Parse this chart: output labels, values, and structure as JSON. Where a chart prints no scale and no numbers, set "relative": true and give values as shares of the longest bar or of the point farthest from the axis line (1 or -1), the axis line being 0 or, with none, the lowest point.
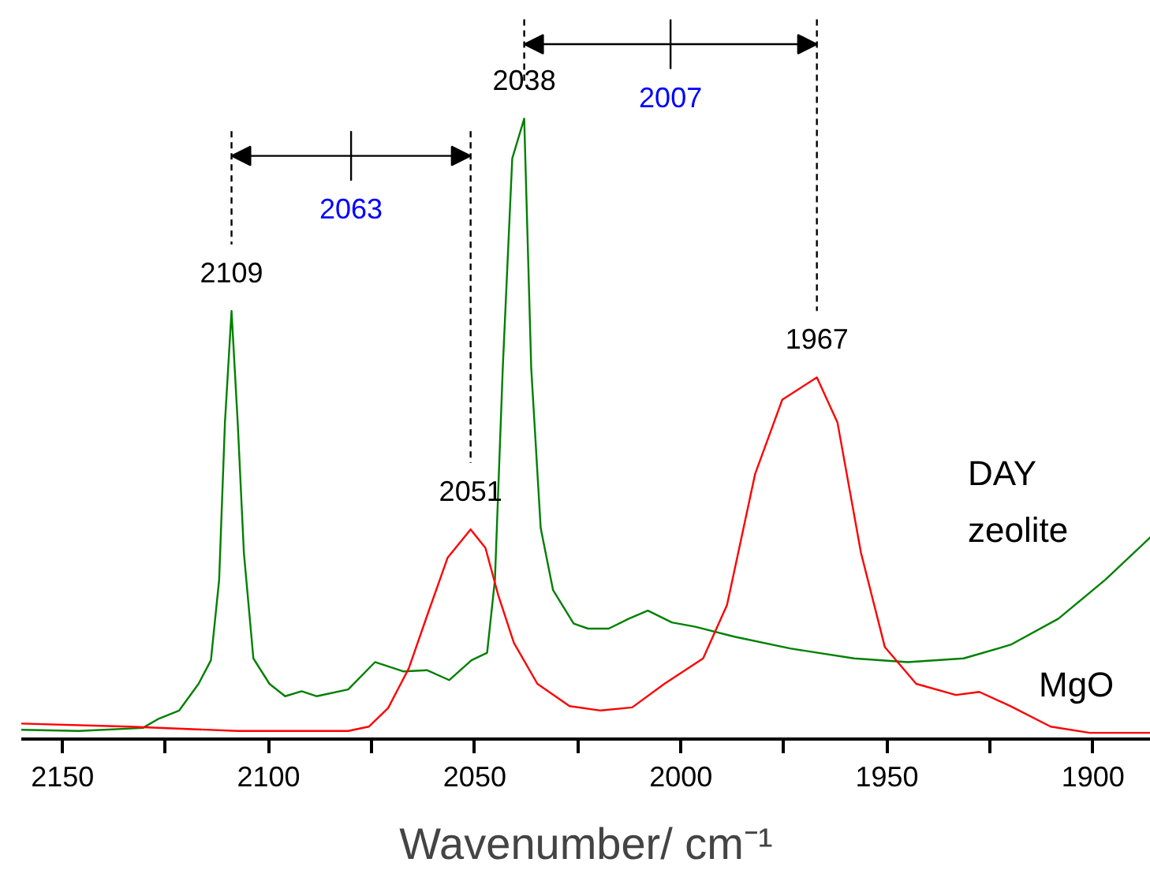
{
  "chart_data": {
    "type": "line",
    "relative": true,
    "xlabel": "Wavenumber/ cm⁻¹",
    "xlim": [
      2160,
      1886
    ],
    "xticks": [
      2150,
      {
        "value": 2125,
        "label": null
      },
      2100,
      {
        "value": 2075,
        "label": null
      },
      2050,
      {
        "value": 2025,
        "label": null
      },
      2000,
      {
        "value": 1975,
        "label": null
      },
      1950,
      {
        "value": 1925,
        "label": null
      },
      1900
    ],
    "series": [
      {
        "name": "DAY zeolite",
        "color": "#008000",
        "x": [
          2160,
          2146,
          2130.5,
          2126.6,
          2121.7,
          2117,
          2114,
          2112,
          2110.6,
          2109,
          2107.5,
          2106,
          2103.7,
          2099.8,
          2096,
          2092,
          2088.4,
          2080.7,
          2074.2,
          2067.3,
          2061.6,
          2056.2,
          2050.8,
          2047,
          2045.1,
          2043.2,
          2040.9,
          2038,
          2036.3,
          2034,
          2031,
          2026,
          2022.5,
          2017.5,
          2012.6,
          2008,
          2002.2,
          1996.5,
          1987,
          1973.5,
          1958,
          1945,
          1931.4,
          1920,
          1908.4,
          1897,
          1886
        ],
        "values": [
          0.015,
          0.013,
          0.018,
          0.033,
          0.046,
          0.089,
          0.127,
          0.257,
          0.51,
          0.69,
          0.51,
          0.3,
          0.13,
          0.089,
          0.069,
          0.077,
          0.069,
          0.08,
          0.124,
          0.109,
          0.111,
          0.095,
          0.127,
          0.139,
          0.257,
          0.598,
          0.936,
          1.0,
          0.598,
          0.34,
          0.24,
          0.186,
          0.178,
          0.178,
          0.194,
          0.207,
          0.188,
          0.181,
          0.165,
          0.146,
          0.13,
          0.124,
          0.13,
          0.152,
          0.194,
          0.257,
          0.326
        ]
      },
      {
        "name": "MgO",
        "color": "#ff0000",
        "x": [
          2160,
          2134,
          2107.5,
          2080.7,
          2075.7,
          2071,
          2066,
          2061.6,
          2056.6,
          2051,
          2047.4,
          2044.3,
          2040.5,
          2034.8,
          2027,
          2019.5,
          2011.8,
          2004,
          1994.6,
          1988.8,
          1982,
          1975.4,
          1967,
          1962,
          1956.3,
          1950.5,
          1942.9,
          1933.3,
          1927.6,
          1920,
          1910.3,
          1900.8,
          1886
        ],
        "values": [
          0.025,
          0.02,
          0.013,
          0.013,
          0.02,
          0.05,
          0.114,
          0.198,
          0.292,
          0.338,
          0.308,
          0.232,
          0.155,
          0.089,
          0.053,
          0.046,
          0.051,
          0.089,
          0.13,
          0.216,
          0.427,
          0.547,
          0.583,
          0.51,
          0.3,
          0.148,
          0.089,
          0.071,
          0.076,
          0.053,
          0.02,
          0.01,
          0.01
        ]
      }
    ],
    "annotations": [
      {
        "text": "2109",
        "x": 2109,
        "y": 0.69
      },
      {
        "text": "2051",
        "x": 2051,
        "y": 0.338
      },
      "2063",
      {
        "text": "2038",
        "x": 2038,
        "y": 1.0
      },
      {
        "text": "1967",
        "x": 1967,
        "y": 0.583
      },
      "2007"
    ]
  }
}
